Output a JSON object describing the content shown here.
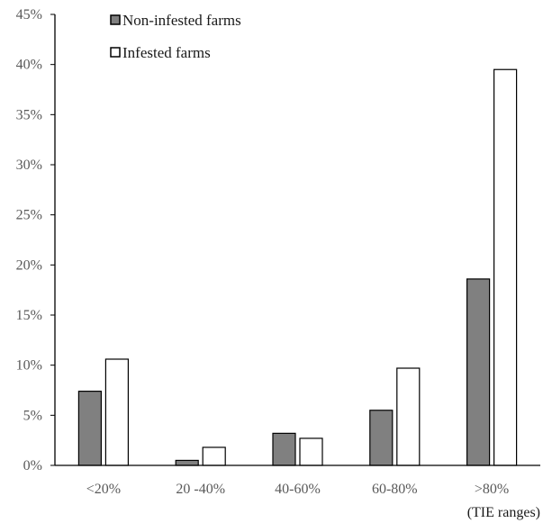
{
  "chart_data": {
    "type": "bar",
    "categories": [
      "<20%",
      "20 -40%",
      "40-60%",
      "60-80%",
      ">80%"
    ],
    "series": [
      {
        "name": "Non-infested farms",
        "values": [
          7.4,
          0.5,
          3.2,
          5.5,
          18.6
        ],
        "color": "#808080"
      },
      {
        "name": "Infested farms",
        "values": [
          10.6,
          1.8,
          2.7,
          9.7,
          39.5
        ],
        "color": "#ffffff"
      }
    ],
    "yticks": [
      "0%",
      "5%",
      "10%",
      "15%",
      "20%",
      "25%",
      "30%",
      "35%",
      "40%",
      "45%"
    ],
    "ylim": [
      0,
      45
    ],
    "xlabel": "(TIE ranges)",
    "ylabel": "",
    "grid": false,
    "legend": "top-left"
  }
}
